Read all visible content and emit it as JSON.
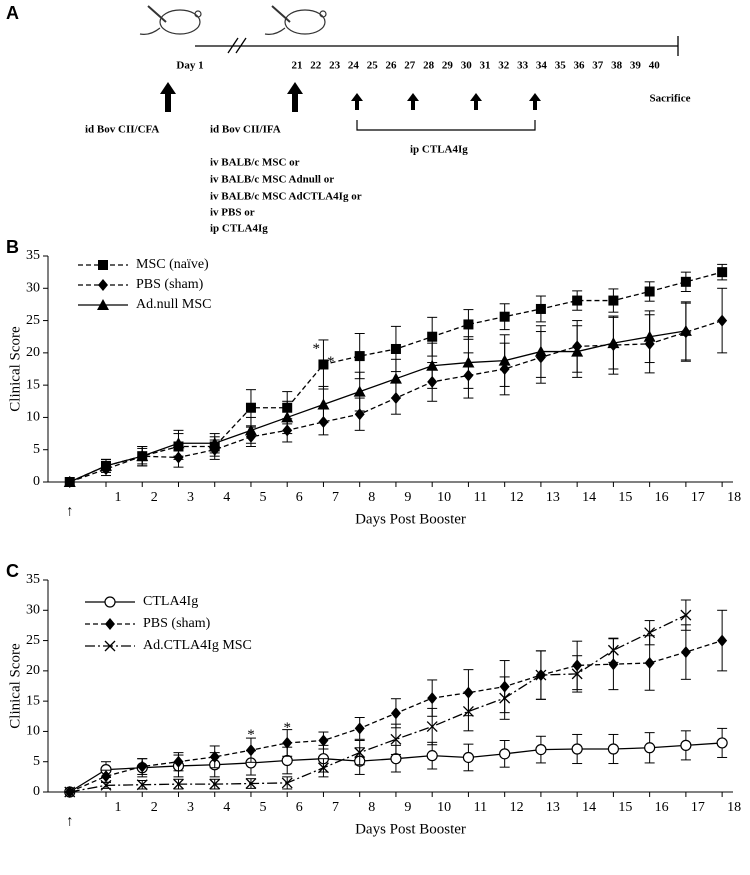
{
  "panel_a": {
    "label": "A",
    "timeline_labels": [
      "Day 1",
      "21",
      "22",
      "23",
      "24",
      "25",
      "26",
      "27",
      "28",
      "29",
      "30",
      "31",
      "32",
      "33",
      "34",
      "35",
      "36",
      "37",
      "38",
      "39",
      "40"
    ],
    "sacrifice": "Sacrifice",
    "immunization1": "id Bov CII/CFA",
    "immunization2": "id Bov CII/IFA",
    "treatments": [
      "iv BALB/c MSC or",
      "iv BALB/c MSC Adnull or",
      "iv BALB/c MSC AdCTLA4Ig or",
      "iv PBS or",
      "ip CTLA4Ig"
    ],
    "ctla4_label": "ip CTLA4Ig"
  },
  "chart_data": [
    {
      "type": "line",
      "panel_label": "B",
      "xlabel": "Days Post Booster",
      "ylabel": "Clinical Score",
      "origin_label": "↑",
      "x": [
        0,
        1,
        2,
        3,
        4,
        5,
        6,
        7,
        8,
        9,
        10,
        11,
        12,
        13,
        14,
        15,
        16,
        17,
        18
      ],
      "xlim": [
        -0.6,
        18.3
      ],
      "xticks": [
        1,
        2,
        3,
        4,
        5,
        6,
        7,
        8,
        9,
        10,
        11,
        12,
        13,
        14,
        15,
        16,
        17,
        18
      ],
      "ylim": [
        0,
        35
      ],
      "yticks": [
        0,
        5,
        10,
        15,
        20,
        25,
        30,
        35
      ],
      "series": [
        {
          "name": "MSC (naïve)",
          "color": "#000000",
          "marker": "square",
          "dash": "dashed",
          "values": [
            0,
            2.5,
            4,
            5.5,
            5.5,
            11.5,
            11.5,
            18.2,
            19.5,
            20.6,
            22.5,
            24.4,
            25.6,
            26.8,
            28.1,
            28.1,
            29.5,
            31,
            32.5
          ],
          "errors": [
            0,
            1,
            1.5,
            2,
            1.5,
            2.8,
            2.5,
            3.8,
            3.5,
            3.5,
            3,
            2.3,
            2,
            2,
            1.5,
            1.8,
            1.5,
            1.5,
            1.2
          ]
        },
        {
          "name": "PBS (sham)",
          "color": "#000000",
          "marker": "diamond",
          "dash": "dashed",
          "values": [
            0,
            2,
            4,
            3.8,
            5,
            7,
            8,
            9.3,
            10.5,
            13,
            15.5,
            16.5,
            17.5,
            19.3,
            21,
            21.2,
            21.4,
            23.2,
            25
          ],
          "errors": [
            0,
            1,
            1.5,
            1.5,
            1.5,
            1.5,
            1.8,
            2,
            2.5,
            2.5,
            3,
            3.5,
            4,
            4,
            4,
            4.5,
            4.5,
            4.5,
            5
          ]
        },
        {
          "name": "Ad.null MSC",
          "color": "#000000",
          "marker": "triangle",
          "dash": "solid",
          "values": [
            0,
            2.5,
            4,
            6,
            6,
            8,
            10,
            12,
            14,
            16,
            18,
            18.5,
            18.8,
            20.2,
            20.2,
            21.5,
            22.5,
            23.4,
            null
          ],
          "errors": [
            0,
            1,
            1.2,
            2,
            1.5,
            2,
            2.5,
            2.8,
            3,
            3,
            3.5,
            4,
            4,
            4,
            4,
            4,
            4,
            4.5,
            null
          ]
        }
      ],
      "annotations": [
        {
          "text": "*",
          "x": 6.8,
          "y": 20.5
        },
        {
          "text": "*",
          "x": 7.2,
          "y": 18.5
        }
      ]
    },
    {
      "type": "line",
      "panel_label": "C",
      "xlabel": "Days Post Booster",
      "ylabel": "Clinical Score",
      "origin_label": "↑",
      "x": [
        0,
        1,
        2,
        3,
        4,
        5,
        6,
        7,
        8,
        9,
        10,
        11,
        12,
        13,
        14,
        15,
        16,
        17,
        18
      ],
      "xlim": [
        -0.6,
        18.3
      ],
      "xticks": [
        1,
        2,
        3,
        4,
        5,
        6,
        7,
        8,
        9,
        10,
        11,
        12,
        13,
        14,
        15,
        16,
        17,
        18
      ],
      "ylim": [
        0,
        35
      ],
      "yticks": [
        0,
        5,
        10,
        15,
        20,
        25,
        30,
        35
      ],
      "series": [
        {
          "name": "CTLA4Ig",
          "color": "#000000",
          "marker": "circle",
          "dash": "solid",
          "values": [
            0,
            3.7,
            4,
            4.3,
            4.5,
            4.8,
            5.2,
            5.5,
            5.1,
            5.5,
            6,
            5.7,
            6.3,
            7,
            7.1,
            7.1,
            7.3,
            7.7,
            8.1
          ],
          "errors": [
            0,
            1.3,
            1.5,
            1.8,
            2,
            2,
            2.2,
            2.2,
            2.2,
            2.2,
            2.2,
            2.2,
            2.2,
            2.2,
            2.4,
            2.4,
            2.5,
            2.4,
            2.4
          ]
        },
        {
          "name": "PBS (sham)",
          "color": "#000000",
          "marker": "diamond",
          "dash": "dashed",
          "values": [
            0,
            2.6,
            4.2,
            5,
            5.8,
            6.9,
            8.1,
            8.5,
            10.5,
            13,
            15.5,
            16.4,
            17.4,
            19.3,
            20.9,
            21.1,
            21.3,
            23.1,
            25
          ],
          "errors": [
            0,
            1,
            1.3,
            1.5,
            1.8,
            2,
            2.2,
            1.4,
            1.8,
            2.4,
            3,
            3.8,
            4.3,
            4,
            4,
            4.2,
            4.5,
            4.5,
            5
          ]
        },
        {
          "name": "Ad.CTLA4Ig MSC",
          "color": "#000000",
          "marker": "x",
          "dash": "dashdot",
          "values": [
            0,
            1.1,
            1.2,
            1.3,
            1.3,
            1.4,
            1.5,
            4,
            6.5,
            8.7,
            10.8,
            13.3,
            15.5,
            19.3,
            19.5,
            23.4,
            26.3,
            29.2,
            null
          ],
          "errors": [
            0,
            0.5,
            0.7,
            0.8,
            0.8,
            0.8,
            1,
            1.5,
            2,
            2.5,
            3,
            3.2,
            3.5,
            4,
            3,
            2,
            2,
            2.5,
            null
          ]
        }
      ],
      "annotations": [
        {
          "text": "*",
          "x": 5,
          "y": 9.3
        },
        {
          "text": "*",
          "x": 6,
          "y": 10.5
        }
      ]
    }
  ]
}
